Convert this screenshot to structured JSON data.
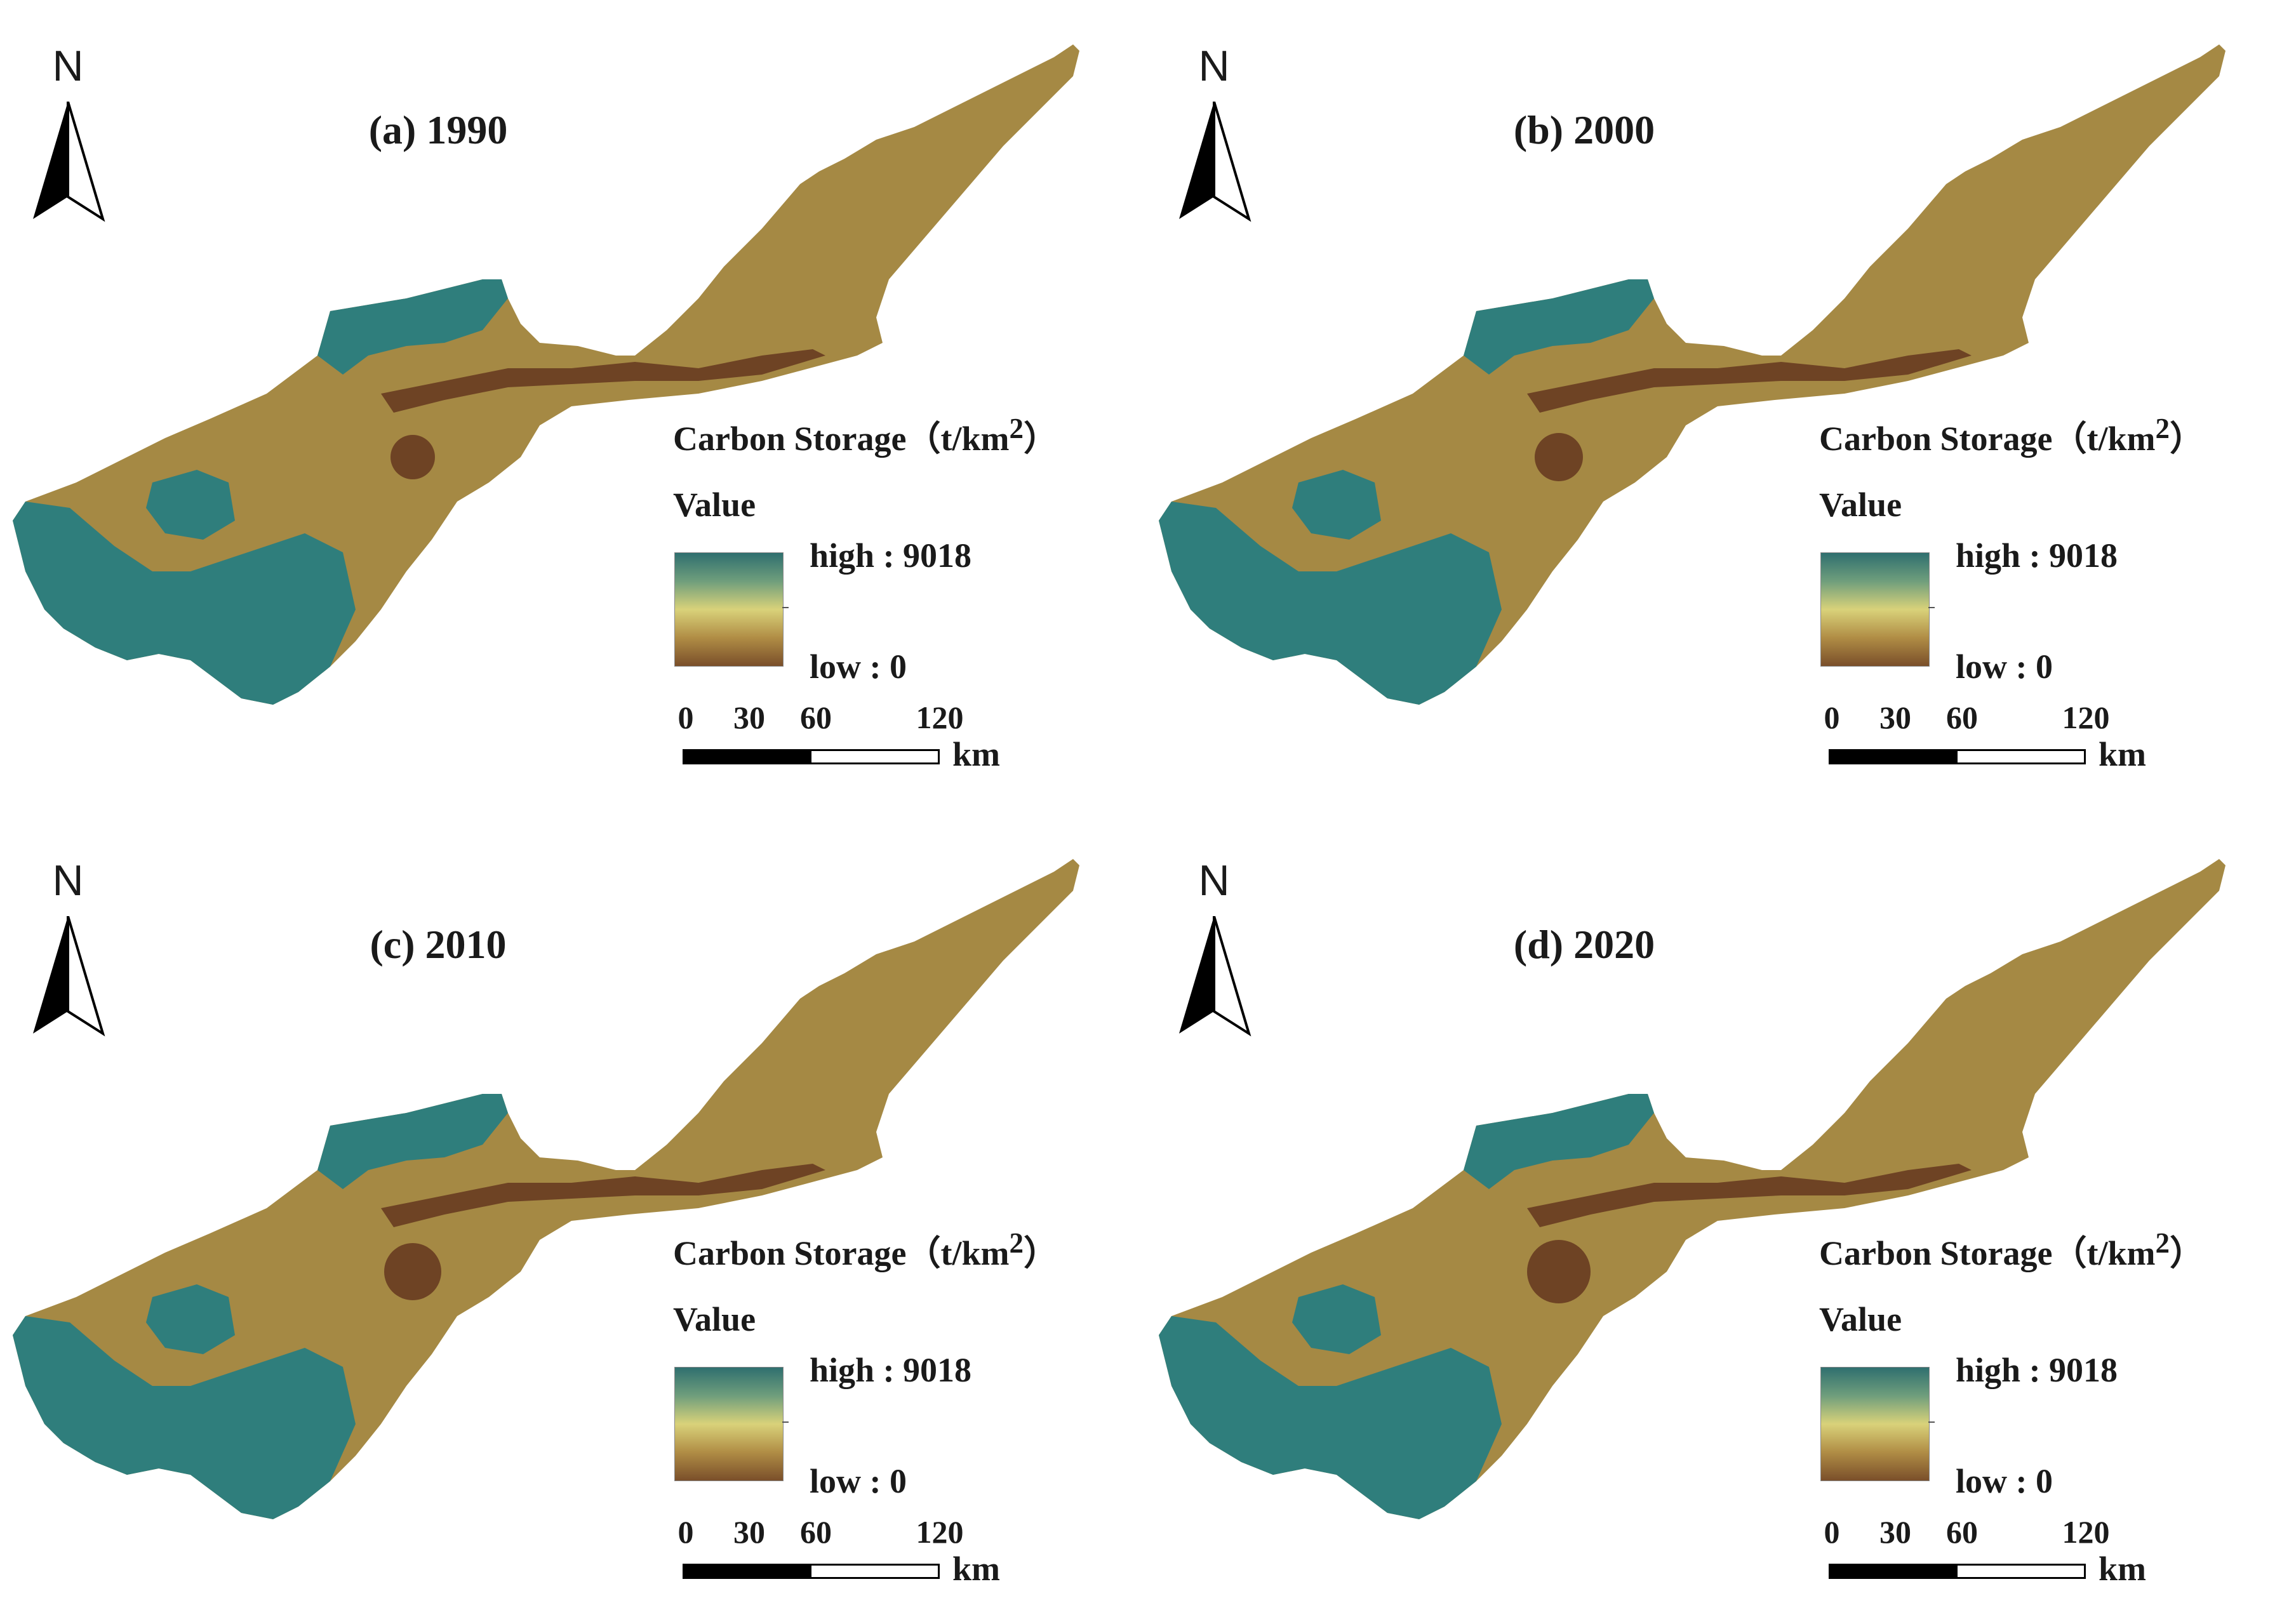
{
  "panels": [
    {
      "title": "(a) 1990"
    },
    {
      "title": "(b) 2000"
    },
    {
      "title": "(c) 2010"
    },
    {
      "title": "(d) 2020"
    }
  ],
  "north_label": "N",
  "legend": {
    "title_prefix": "Carbon Storage（t/km",
    "title_sup": "2",
    "title_suffix": "）",
    "value_heading": "Value",
    "high": "high : 9018",
    "low": "low : 0",
    "ramp_colors": [
      "#2f6f6f",
      "#6f9e7c",
      "#d9d27a",
      "#b08d45",
      "#7a4f2a"
    ]
  },
  "scale": {
    "ticks": [
      "0",
      "30",
      "60",
      "120"
    ],
    "unit": "km"
  },
  "map_colors": {
    "low": "#8f6a34",
    "mid": "#a58944",
    "high": "#2f7e7c",
    "dark": "#6e4324"
  }
}
